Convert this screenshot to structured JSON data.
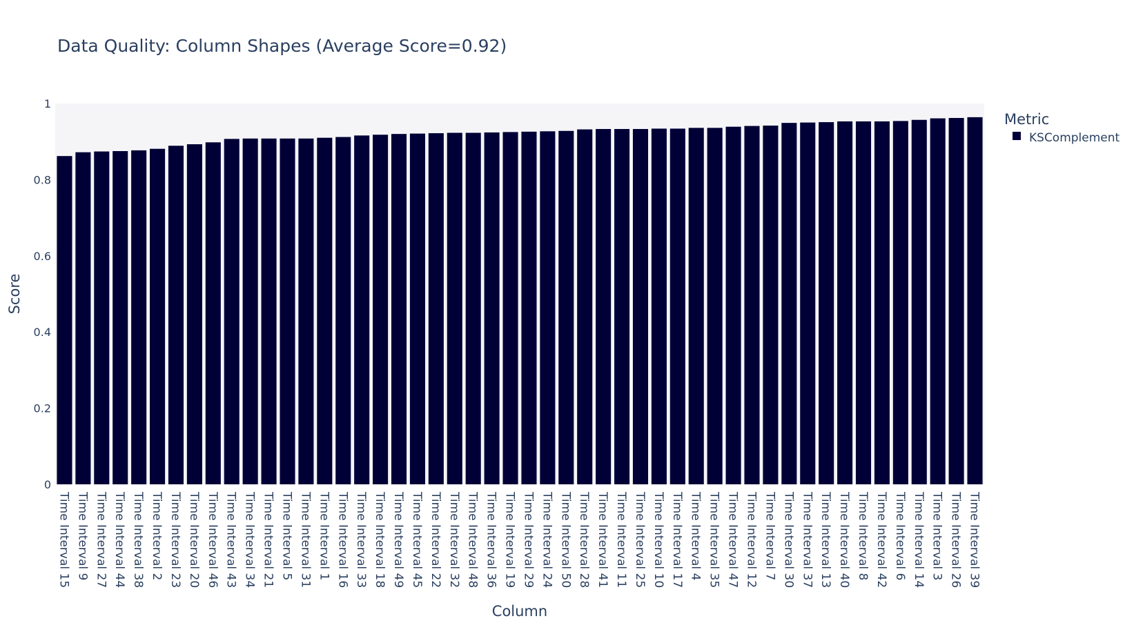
{
  "chart_data": {
    "type": "bar",
    "title": "Data Quality: Column Shapes (Average Score=0.92)",
    "xlabel": "Column",
    "ylabel": "Score",
    "ylim": [
      0,
      1
    ],
    "yticks": [
      0,
      0.2,
      0.4,
      0.6,
      0.8,
      1
    ],
    "ytick_labels": [
      "0",
      "0.2",
      "0.4",
      "0.6",
      "0.8",
      "1"
    ],
    "grid": false,
    "legend": {
      "title": "Metric",
      "placement": "top-right"
    },
    "categories": [
      "Time Interval 15",
      "Time Interval 9",
      "Time Interval 27",
      "Time Interval 44",
      "Time Interval 38",
      "Time Interval 2",
      "Time Interval 23",
      "Time Interval 20",
      "Time Interval 46",
      "Time Interval 43",
      "Time Interval 34",
      "Time Interval 21",
      "Time Interval 5",
      "Time Interval 31",
      "Time Interval 1",
      "Time Interval 16",
      "Time Interval 33",
      "Time Interval 18",
      "Time Interval 49",
      "Time Interval 45",
      "Time Interval 22",
      "Time Interval 32",
      "Time Interval 48",
      "Time Interval 36",
      "Time Interval 19",
      "Time Interval 29",
      "Time Interval 24",
      "Time Interval 50",
      "Time Interval 28",
      "Time Interval 41",
      "Time Interval 11",
      "Time Interval 25",
      "Time Interval 10",
      "Time Interval 17",
      "Time Interval 4",
      "Time Interval 35",
      "Time Interval 47",
      "Time Interval 12",
      "Time Interval 7",
      "Time Interval 30",
      "Time Interval 37",
      "Time Interval 13",
      "Time Interval 40",
      "Time Interval 8",
      "Time Interval 42",
      "Time Interval 6",
      "Time Interval 14",
      "Time Interval 3",
      "Time Interval 26",
      "Time Interval 39"
    ],
    "series": [
      {
        "name": "KSComplement",
        "color": "#000036",
        "values": [
          0.862,
          0.872,
          0.874,
          0.875,
          0.877,
          0.881,
          0.889,
          0.893,
          0.898,
          0.907,
          0.908,
          0.908,
          0.908,
          0.908,
          0.91,
          0.912,
          0.916,
          0.918,
          0.92,
          0.921,
          0.922,
          0.923,
          0.923,
          0.924,
          0.925,
          0.926,
          0.927,
          0.928,
          0.932,
          0.933,
          0.933,
          0.933,
          0.934,
          0.934,
          0.936,
          0.936,
          0.939,
          0.941,
          0.942,
          0.949,
          0.95,
          0.951,
          0.953,
          0.953,
          0.953,
          0.954,
          0.957,
          0.961,
          0.962,
          0.964
        ]
      }
    ],
    "colors": {
      "plot_background": "#f5f5f8",
      "bar": "#000036",
      "text": "#2a3f5f"
    }
  }
}
